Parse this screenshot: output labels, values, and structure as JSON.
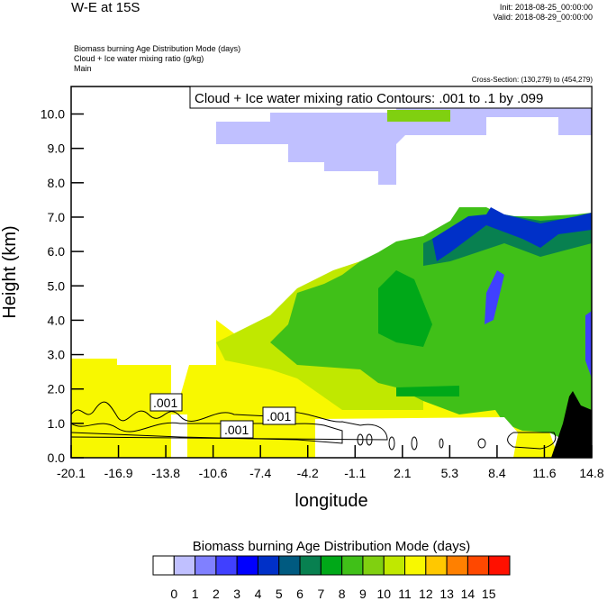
{
  "header": {
    "title": "W-E at 15S",
    "init": "Init: 2018-08-25_00:00:00",
    "valid": "Valid: 2018-08-29_00:00:00",
    "subtitles": [
      "Biomass burning Age Distribution Mode   (days)",
      "Cloud + Ice water mixing ratio   (g/kg)",
      "Main"
    ],
    "cross_section": "Cross-Section: (130,279) to (454,279)"
  },
  "chart_data": {
    "type": "heatmap",
    "title": "Cloud + Ice water mixing ratio Contours: .001 to .1 by .099",
    "xlabel": "longitude",
    "ylabel": "Height (km)",
    "xlim": [
      -20.1,
      14.8
    ],
    "ylim": [
      0,
      10.8
    ],
    "x_ticks": [
      "-20.1",
      "-16.9",
      "-13.8",
      "-10.6",
      "-7.4",
      "-4.2",
      "-1.1",
      "2.1",
      "5.3",
      "8.4",
      "11.6",
      "14.8"
    ],
    "y_ticks": [
      "0.0",
      "1.0",
      "2.0",
      "3.0",
      "4.0",
      "5.0",
      "6.0",
      "7.0",
      "8.0",
      "9.0",
      "10.0"
    ],
    "contour_labels": [
      ".001",
      ".001",
      ".001"
    ],
    "colorbar": {
      "title": "Biomass burning Age Distribution Mode  (days)",
      "labels": [
        "0",
        "1",
        "2",
        "3",
        "4",
        "5",
        "6",
        "7",
        "8",
        "9",
        "10",
        "11",
        "12",
        "13",
        "14",
        "15"
      ],
      "colors": [
        "#ffffff",
        "#c0c0ff",
        "#8080ff",
        "#4040ff",
        "#0000ff",
        "#0030c8",
        "#005a80",
        "#088050",
        "#00a818",
        "#40c018",
        "#80d010",
        "#c0e800",
        "#f8f800",
        "#ffc800",
        "#ff8000",
        "#ff4800",
        "#ff1000"
      ]
    }
  }
}
